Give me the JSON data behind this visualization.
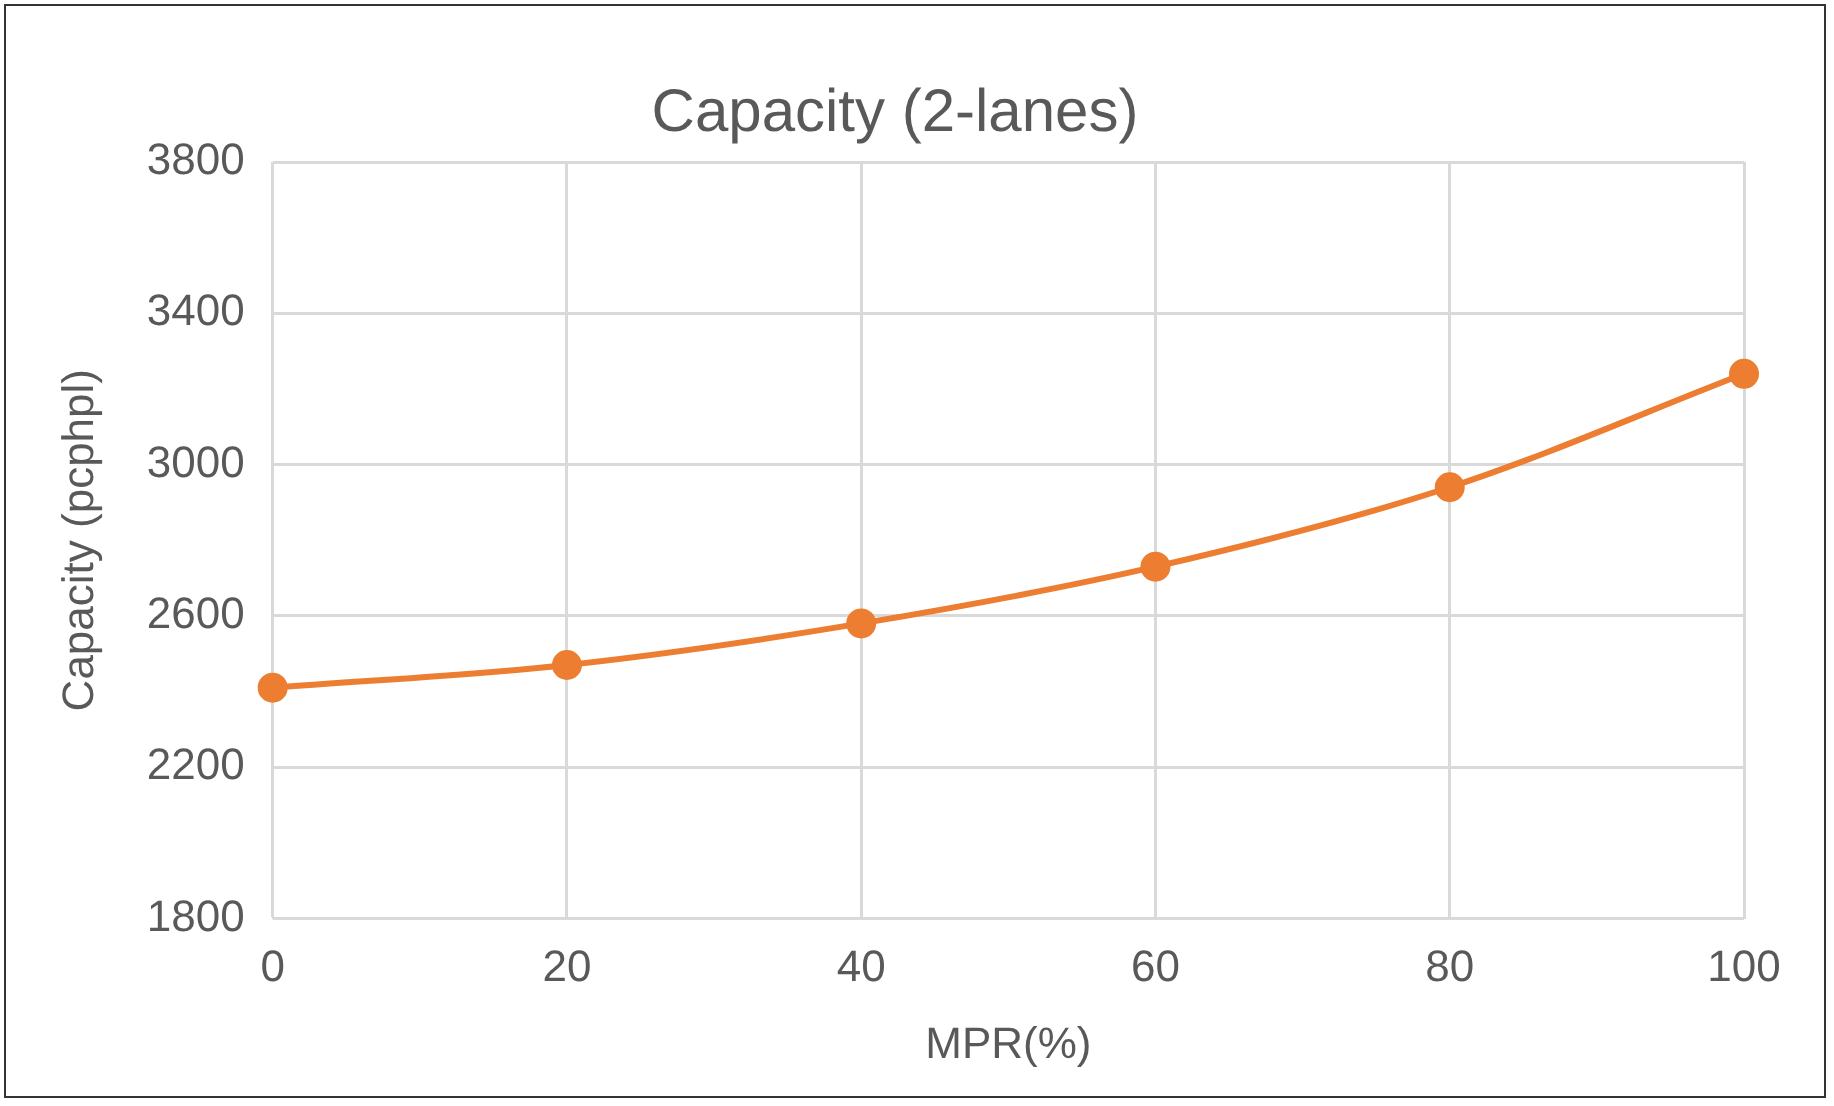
{
  "chart_data": {
    "type": "line",
    "title": "Capacity (2-lanes)",
    "xlabel": "MPR(%)",
    "ylabel": "Capacity (pcphpl)",
    "x": [
      0,
      20,
      40,
      60,
      80,
      100
    ],
    "series": [
      {
        "color": "#ed7d31",
        "values": [
          2410,
          2470,
          2580,
          2730,
          2940,
          3240
        ]
      }
    ],
    "xlim": [
      0,
      100
    ],
    "xticks": [
      0,
      20,
      40,
      60,
      80,
      100
    ],
    "ylim": [
      1800,
      3800
    ],
    "yticks": [
      1800,
      2200,
      2600,
      3000,
      3400,
      3800
    ],
    "grid": true,
    "legend": false,
    "marker": "circle",
    "line_style": "solid"
  }
}
